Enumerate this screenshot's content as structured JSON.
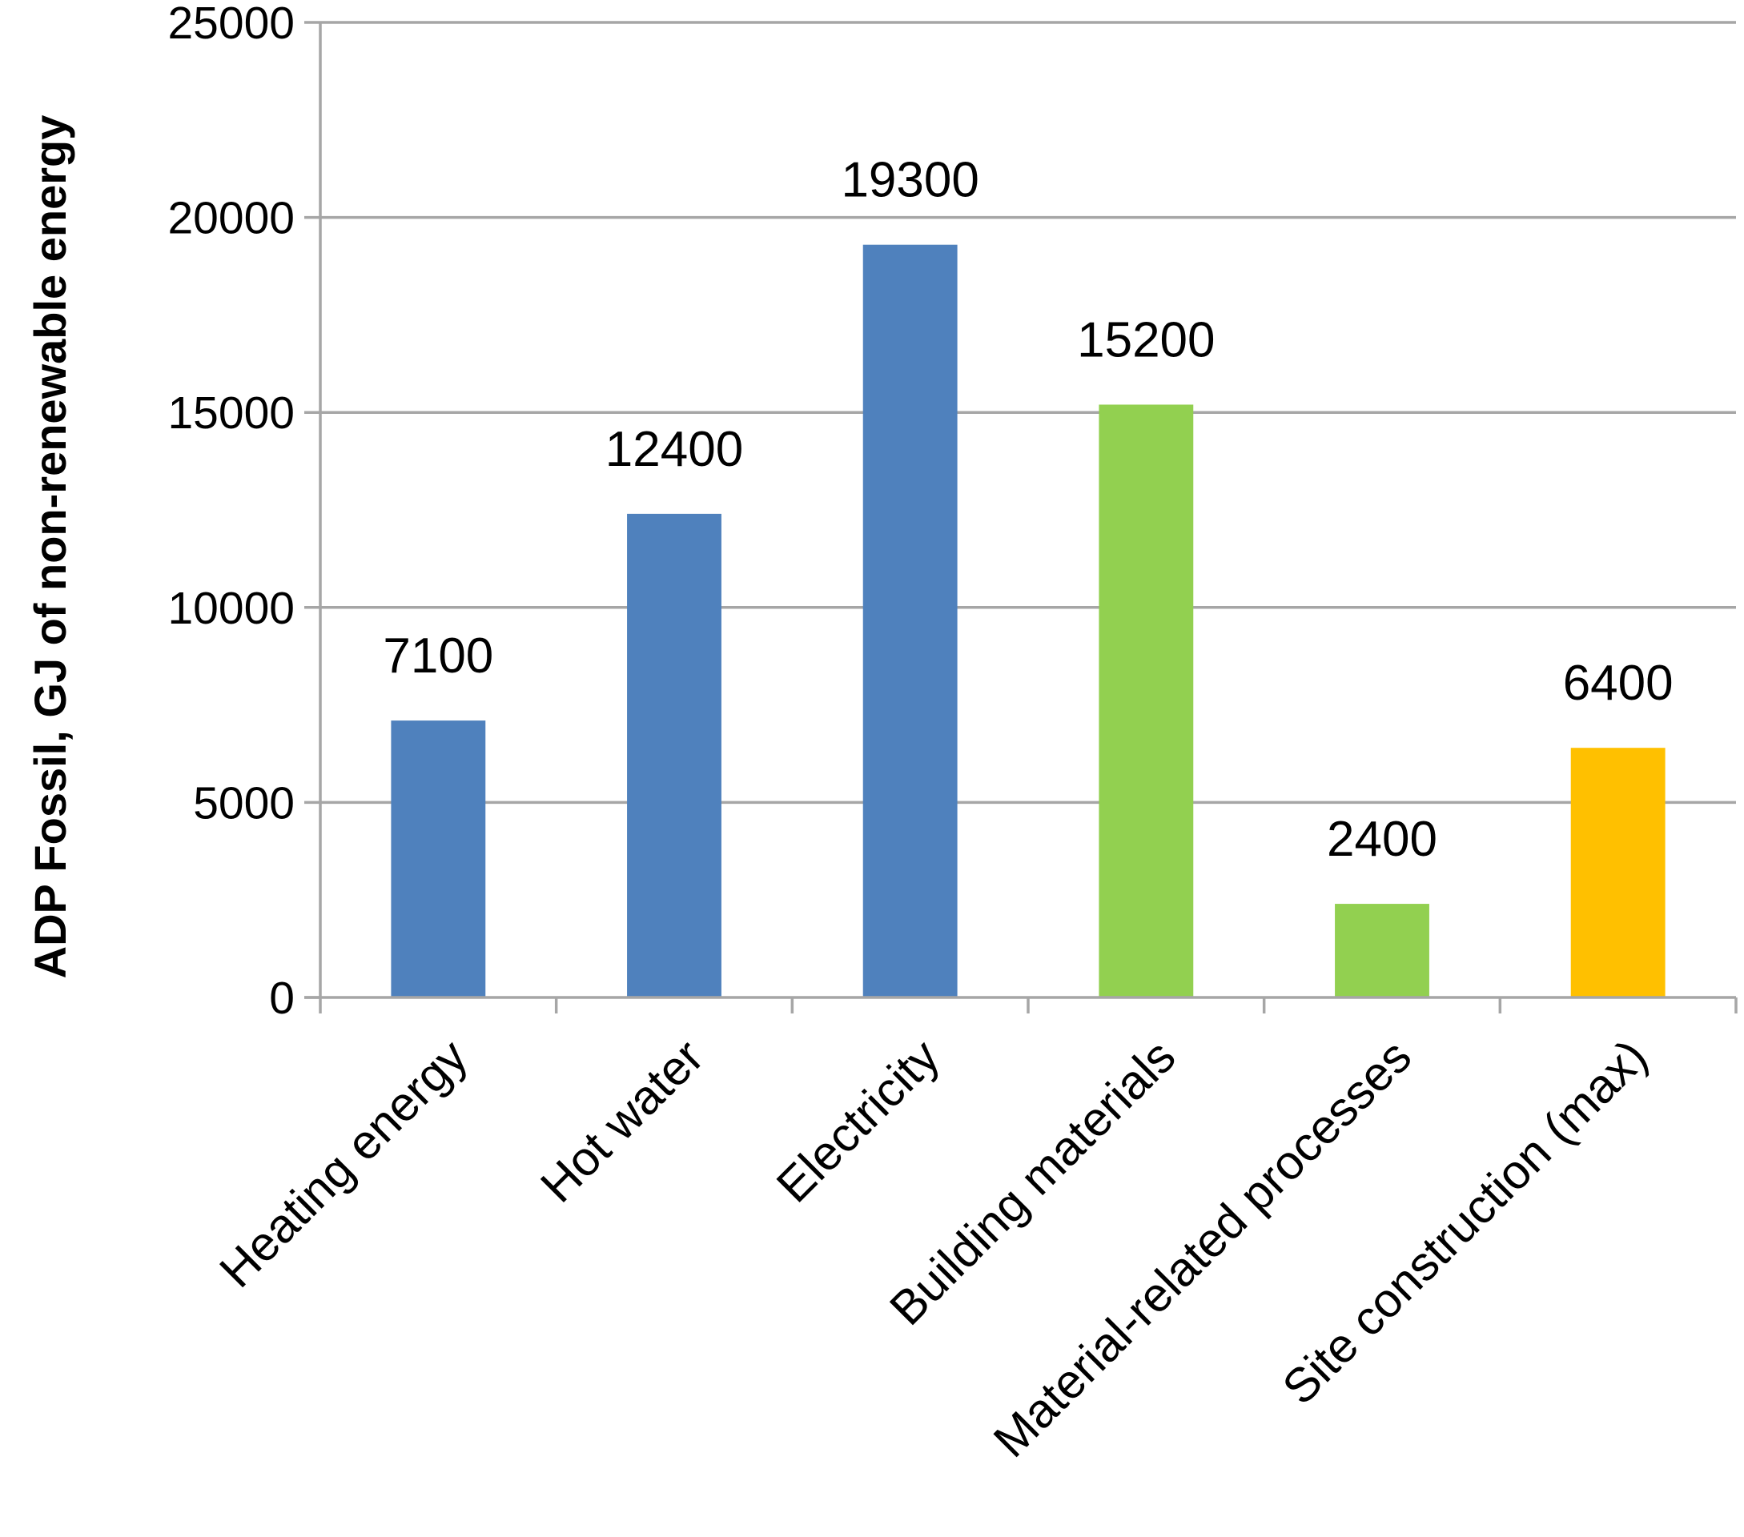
{
  "chart_data": {
    "type": "bar",
    "categories": [
      "Heating energy",
      "Hot water",
      "Electricity",
      "Building materials",
      "Material-related processes",
      "Site construction (max)"
    ],
    "values": [
      7100,
      12400,
      19300,
      15200,
      2400,
      6400
    ],
    "data_labels": [
      "7100",
      "12400",
      "19300",
      "15200",
      "2400",
      "6400"
    ],
    "bar_colors": [
      "#4F81BD",
      "#4F81BD",
      "#4F81BD",
      "#92D050",
      "#92D050",
      "#FFC000"
    ],
    "ylabel": "ADP Fossil, GJ of non-renewable energy",
    "xlabel": "",
    "title": "",
    "ylim": [
      0,
      25000
    ],
    "yticks": [
      0,
      5000,
      10000,
      15000,
      20000,
      25000
    ],
    "ytick_labels": [
      "0",
      "5000",
      "10000",
      "15000",
      "20000",
      "25000"
    ],
    "grid": true,
    "gridline_color": "#A6A6A6",
    "legend": "none"
  }
}
